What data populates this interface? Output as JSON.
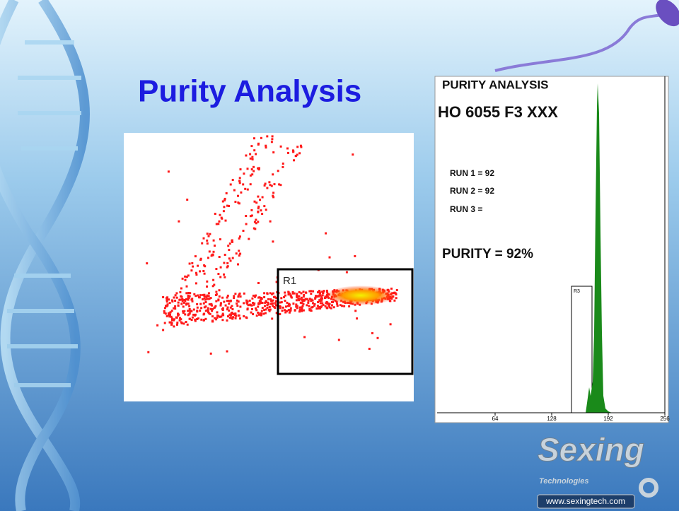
{
  "title": "Purity Analysis",
  "scatter": {
    "gate_label": "R1"
  },
  "histogram": {
    "heading": "PURITY ANALYSIS",
    "sample": "HO 6055 F3 XXX",
    "runs": [
      "RUN 1 = 92",
      "RUN 2 = 92",
      "RUN 3 ="
    ],
    "purity": "PURITY = 92%",
    "gate_label": "R3",
    "xlim": [
      0,
      256
    ],
    "xticks": [
      64,
      128,
      192,
      256
    ]
  },
  "logo": {
    "name": "Sexing",
    "tagline": "Technologies",
    "url": "www.sexingtech.com"
  }
}
